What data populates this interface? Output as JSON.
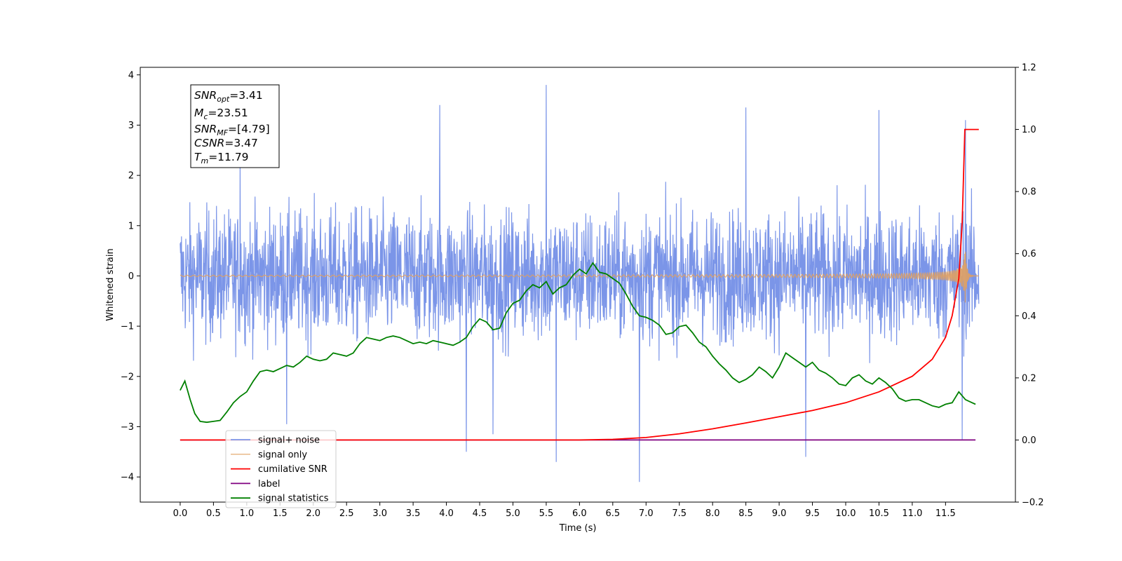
{
  "chart_data": {
    "type": "line",
    "xlabel": "Time (s)",
    "ylabel": "Whitened strain",
    "xlim": [
      -0.6,
      12.55
    ],
    "ylim": [
      -4.5,
      4.15
    ],
    "y2lim": [
      -0.2,
      1.2
    ],
    "grid": false,
    "x_ticks": [
      "0.0",
      "0.5",
      "1.0",
      "1.5",
      "2.0",
      "2.5",
      "3.0",
      "3.5",
      "4.0",
      "4.5",
      "5.0",
      "5.5",
      "6.0",
      "6.5",
      "7.0",
      "7.5",
      "8.0",
      "8.5",
      "9.0",
      "9.5",
      "10.0",
      "10.5",
      "11.0",
      "11.5"
    ],
    "y_ticks": [
      "−4",
      "−3",
      "−2",
      "−1",
      "0",
      "1",
      "2",
      "3",
      "4"
    ],
    "y2_ticks": [
      "−0.2",
      "0.0",
      "0.2",
      "0.4",
      "0.6",
      "0.8",
      "1.0",
      "1.2"
    ],
    "legend_location": "lower-left",
    "info_box": {
      "snr_opt": {
        "symbol": "SNR",
        "sub": "opt",
        "value": "=3.41"
      },
      "mc": {
        "symbol": "M",
        "sub": "c",
        "value": "=23.51"
      },
      "snr_mf": {
        "symbol": "SNR",
        "sub": "MF",
        "value": "=[4.79]"
      },
      "csnr": {
        "symbol": "CSNR",
        "sub": "",
        "value": "=3.47"
      },
      "tm": {
        "symbol": "T",
        "sub": "m",
        "value": "=11.79"
      }
    },
    "series": [
      {
        "name": "signal+ noise",
        "color": "#7b95e8",
        "axis": "left",
        "description_values": "whitened noise, range about -4.1 to 3.8, spanning t = 0.0 to 12.0 s",
        "t_start": 0.0,
        "t_end": 12.0,
        "spikes": [
          [
            0.9,
            2.4
          ],
          [
            1.6,
            -2.95
          ],
          [
            3.9,
            3.4
          ],
          [
            4.3,
            -3.5
          ],
          [
            4.7,
            -3.15
          ],
          [
            5.5,
            3.8
          ],
          [
            5.65,
            -3.7
          ],
          [
            6.9,
            -4.1
          ],
          [
            8.5,
            3.35
          ],
          [
            9.4,
            -3.6
          ],
          [
            10.5,
            3.3
          ],
          [
            11.8,
            3.1
          ],
          [
            11.75,
            -3.25
          ]
        ]
      },
      {
        "name": "signal only",
        "color": "#e0a060",
        "axis": "left",
        "chirp_peak_time": 11.79,
        "chirp_peak_amp": 0.75,
        "t_start": 0.0,
        "t_end": 12.0
      },
      {
        "name": "cumilative SNR",
        "color": "#ff0000",
        "axis": "right",
        "x": [
          0.0,
          6.0,
          6.5,
          7.0,
          7.5,
          8.0,
          8.5,
          9.0,
          9.5,
          10.0,
          10.5,
          11.0,
          11.3,
          11.5,
          11.6,
          11.7,
          11.75,
          11.79,
          12.0
        ],
        "y": [
          0.0,
          0.0,
          0.002,
          0.008,
          0.02,
          0.036,
          0.055,
          0.075,
          0.095,
          0.12,
          0.155,
          0.205,
          0.26,
          0.33,
          0.4,
          0.52,
          0.7,
          1.0,
          1.0
        ]
      },
      {
        "name": "label",
        "color": "#800080",
        "axis": "right",
        "x": [
          0.0,
          11.95
        ],
        "y": [
          0.0,
          0.0
        ]
      },
      {
        "name": "signal statistics",
        "color": "#008000",
        "axis": "right",
        "x": [
          0.0,
          0.07,
          0.15,
          0.22,
          0.3,
          0.4,
          0.5,
          0.6,
          0.7,
          0.8,
          0.9,
          1.0,
          1.1,
          1.2,
          1.3,
          1.4,
          1.5,
          1.6,
          1.7,
          1.8,
          1.9,
          2.0,
          2.1,
          2.2,
          2.3,
          2.4,
          2.5,
          2.6,
          2.7,
          2.8,
          2.9,
          3.0,
          3.1,
          3.2,
          3.3,
          3.4,
          3.5,
          3.6,
          3.7,
          3.8,
          3.9,
          4.0,
          4.1,
          4.2,
          4.3,
          4.4,
          4.5,
          4.6,
          4.7,
          4.8,
          4.9,
          5.0,
          5.1,
          5.2,
          5.3,
          5.4,
          5.5,
          5.6,
          5.7,
          5.8,
          5.9,
          6.0,
          6.1,
          6.2,
          6.3,
          6.4,
          6.5,
          6.6,
          6.7,
          6.8,
          6.9,
          7.0,
          7.1,
          7.2,
          7.3,
          7.4,
          7.5,
          7.6,
          7.7,
          7.8,
          7.9,
          8.0,
          8.1,
          8.2,
          8.3,
          8.4,
          8.5,
          8.6,
          8.7,
          8.8,
          8.9,
          9.0,
          9.1,
          9.2,
          9.3,
          9.4,
          9.5,
          9.6,
          9.7,
          9.8,
          9.9,
          10.0,
          10.1,
          10.2,
          10.3,
          10.4,
          10.5,
          10.6,
          10.7,
          10.8,
          10.9,
          11.0,
          11.1,
          11.2,
          11.3,
          11.4,
          11.5,
          11.6,
          11.7,
          11.8,
          11.9,
          11.95
        ],
        "y": [
          0.16,
          0.19,
          0.13,
          0.085,
          0.06,
          0.057,
          0.06,
          0.063,
          0.09,
          0.12,
          0.14,
          0.155,
          0.19,
          0.22,
          0.225,
          0.22,
          0.23,
          0.24,
          0.235,
          0.25,
          0.27,
          0.26,
          0.255,
          0.26,
          0.28,
          0.275,
          0.27,
          0.28,
          0.31,
          0.33,
          0.325,
          0.32,
          0.33,
          0.335,
          0.33,
          0.32,
          0.31,
          0.315,
          0.31,
          0.32,
          0.315,
          0.31,
          0.305,
          0.315,
          0.33,
          0.365,
          0.39,
          0.38,
          0.355,
          0.36,
          0.41,
          0.44,
          0.45,
          0.48,
          0.5,
          0.49,
          0.51,
          0.47,
          0.49,
          0.5,
          0.53,
          0.55,
          0.535,
          0.57,
          0.54,
          0.535,
          0.52,
          0.505,
          0.47,
          0.43,
          0.4,
          0.395,
          0.385,
          0.37,
          0.34,
          0.345,
          0.365,
          0.37,
          0.345,
          0.315,
          0.3,
          0.27,
          0.245,
          0.225,
          0.2,
          0.185,
          0.195,
          0.21,
          0.235,
          0.22,
          0.2,
          0.235,
          0.28,
          0.265,
          0.25,
          0.235,
          0.25,
          0.225,
          0.215,
          0.2,
          0.18,
          0.175,
          0.2,
          0.21,
          0.19,
          0.18,
          0.2,
          0.185,
          0.165,
          0.135,
          0.125,
          0.13,
          0.13,
          0.12,
          0.11,
          0.105,
          0.115,
          0.12,
          0.155,
          0.13,
          0.12,
          0.115
        ]
      }
    ]
  }
}
